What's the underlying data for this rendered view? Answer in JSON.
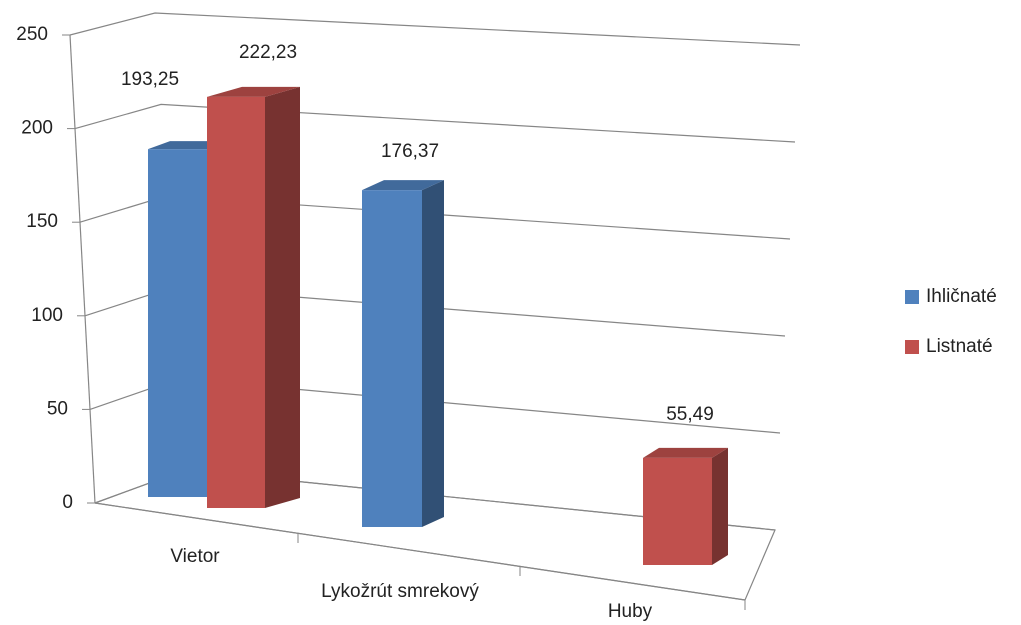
{
  "chart_data": {
    "type": "bar3d",
    "categories": [
      "Vietor",
      "Lykožrút smrekový",
      "Huby"
    ],
    "series": [
      {
        "name": "Ihličnaté",
        "color": "#4f81bd",
        "values": [
          193.25,
          176.37,
          null
        ],
        "value_labels": [
          "193,25",
          "176,37",
          null
        ]
      },
      {
        "name": "Listnaté",
        "color": "#c0504d",
        "values": [
          222.23,
          null,
          55.49
        ],
        "value_labels": [
          "222,23",
          null,
          "55,49"
        ]
      }
    ],
    "ylim": [
      0,
      250
    ],
    "yticks": [
      0,
      50,
      100,
      150,
      200,
      250
    ],
    "grid": true,
    "legend": "right"
  }
}
